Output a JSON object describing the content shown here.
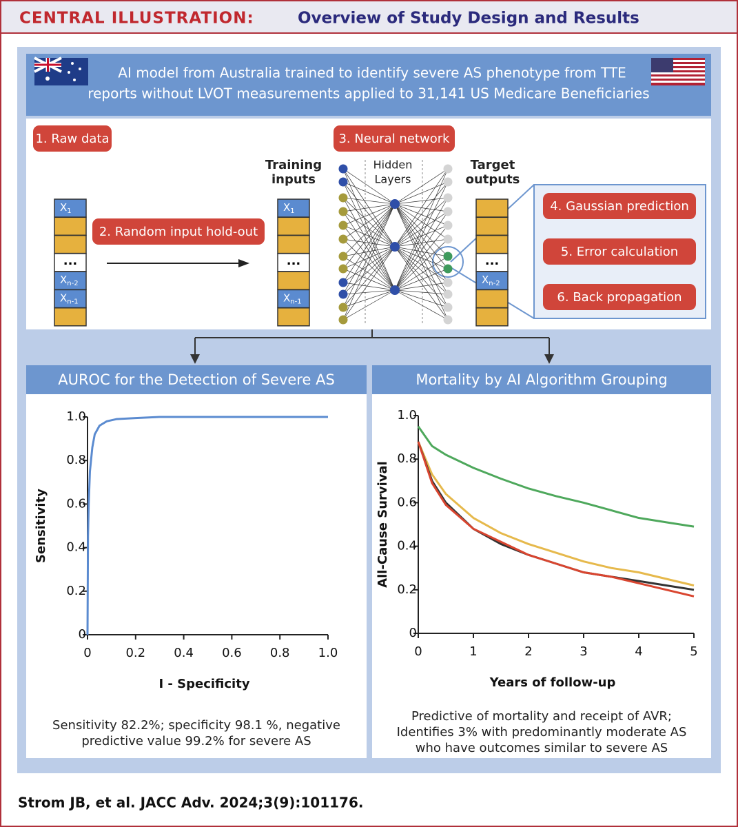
{
  "header": {
    "label": "CENTRAL ILLUSTRATION:",
    "title": "Overview of Study Design and Results"
  },
  "banner": [
    "AI model from Australia trained to identify severe AS phenotype from TTE",
    "reports without LVOT measurements applied to 31,141 US Medicare Beneficiaries"
  ],
  "steps": [
    "1. Raw data",
    "2. Random input hold-out",
    "3. Neural network",
    "4. Gaussian prediction",
    "5. Error calculation",
    "6. Back propagation"
  ],
  "network": {
    "training_inputs": [
      "Training",
      "inputs"
    ],
    "hidden_layers": [
      "Hidden",
      "Layers"
    ],
    "target_outputs": [
      "Target",
      "outputs"
    ]
  },
  "vector_labels": {
    "x": "X",
    "subs": [
      "1",
      "n-2",
      "n-1"
    ],
    "ellipsis": "..."
  },
  "chart_data": [
    {
      "type": "line",
      "title": "AUROC for the Detection of Severe AS",
      "xlabel": "I - Specificity",
      "ylabel": "Sensitivity",
      "x": [
        0,
        0.002,
        0.005,
        0.01,
        0.02,
        0.03,
        0.05,
        0.08,
        0.12,
        0.2,
        0.3,
        0.5,
        1.0
      ],
      "series": [
        {
          "color": "#5b8bd0",
          "values": [
            0,
            0.45,
            0.6,
            0.75,
            0.86,
            0.92,
            0.96,
            0.98,
            0.99,
            0.995,
            1,
            1,
            1
          ]
        }
      ],
      "xlim": [
        0,
        1
      ],
      "ylim": [
        0,
        1
      ],
      "xticks": [
        0,
        0.2,
        0.4,
        0.6,
        0.8,
        {
          "value": 1,
          "label": "1.0"
        }
      ],
      "yticks": [
        0,
        0.2,
        0.4,
        0.6,
        0.8,
        {
          "value": 1,
          "label": "1.0"
        }
      ],
      "caption": [
        "Sensitivity 82.2%; specificity 98.1 %, negative",
        "predictive value 99.2% for severe AS"
      ]
    },
    {
      "type": "line",
      "title": "Mortality by AI Algorithm Grouping",
      "xlabel": "Years of follow-up",
      "ylabel": "All-Cause Survival",
      "x": [
        0,
        0.25,
        0.5,
        1,
        1.5,
        2,
        2.5,
        3,
        3.5,
        4,
        4.5,
        5
      ],
      "series": [
        {
          "color": "#4ea85c",
          "values": [
            0.95,
            0.86,
            0.82,
            0.76,
            0.71,
            0.665,
            0.63,
            0.6,
            0.565,
            0.53,
            0.51,
            0.49
          ]
        },
        {
          "color": "#e6b94c",
          "values": [
            0.88,
            0.73,
            0.64,
            0.53,
            0.46,
            0.41,
            0.37,
            0.33,
            0.3,
            0.28,
            0.25,
            0.22
          ]
        },
        {
          "color": "#333333",
          "values": [
            0.88,
            0.7,
            0.6,
            0.48,
            0.41,
            0.36,
            0.32,
            0.28,
            0.26,
            0.24,
            0.22,
            0.2
          ]
        },
        {
          "color": "#d9452f",
          "values": [
            0.88,
            0.69,
            0.59,
            0.48,
            0.42,
            0.36,
            0.32,
            0.28,
            0.26,
            0.23,
            0.2,
            0.17
          ]
        }
      ],
      "xlim": [
        0,
        5
      ],
      "ylim": [
        0,
        1
      ],
      "xticks": [
        0,
        1,
        2,
        3,
        4,
        5
      ],
      "yticks": [
        0,
        0.2,
        0.4,
        0.6,
        0.8,
        {
          "value": 1,
          "label": "1.0"
        }
      ],
      "caption": [
        "Predictive of mortality and receipt of AVR;",
        "Identifies 3% with predominantly moderate AS",
        "who have outcomes similar to severe AS"
      ]
    }
  ],
  "footer": "Strom JB, et al. JACC Adv. 2024;3(9):101176."
}
